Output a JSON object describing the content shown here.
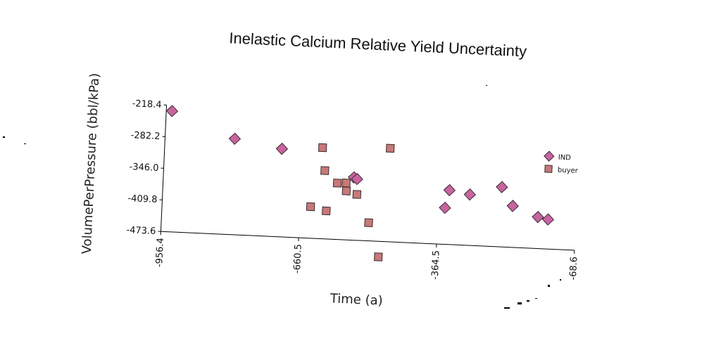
{
  "chart_data": {
    "type": "scatter",
    "title": "Inelastic Calcium Relative Yield Uncertainty",
    "xlabel": "Time (a)",
    "ylabel": "VolumePerPressure (bbl/kPa)",
    "xlim": [
      -956.4,
      -68.6
    ],
    "ylim": [
      -473.6,
      -218.4
    ],
    "x_ticks": [
      "-956.4",
      "-660.5",
      "-364.5",
      "-68.6"
    ],
    "y_ticks": [
      "-218.4",
      "-282.2",
      "-346.0",
      "-409.8",
      "-473.6"
    ],
    "legend_position": "right",
    "series": [
      {
        "name": "IND",
        "marker": "diamond",
        "color": "#c8649e",
        "points": [
          {
            "x": -944,
            "y": -230
          },
          {
            "x": -807,
            "y": -280
          },
          {
            "x": -705,
            "y": -296
          },
          {
            "x": -548,
            "y": -347
          },
          {
            "x": -541,
            "y": -350
          },
          {
            "x": -350,
            "y": -400
          },
          {
            "x": -342,
            "y": -364
          },
          {
            "x": -298,
            "y": -371
          },
          {
            "x": -230,
            "y": -353
          },
          {
            "x": -205,
            "y": -390
          },
          {
            "x": -150,
            "y": -410
          },
          {
            "x": -128,
            "y": -414
          }
        ]
      },
      {
        "name": "buyer",
        "marker": "square",
        "color": "#c87878",
        "points": [
          {
            "x": -618,
            "y": -290
          },
          {
            "x": -611,
            "y": -336
          },
          {
            "x": -583,
            "y": -360
          },
          {
            "x": -564,
            "y": -359
          },
          {
            "x": -563,
            "y": -375
          },
          {
            "x": -540,
            "y": -381
          },
          {
            "x": -638,
            "y": -410
          },
          {
            "x": -604,
            "y": -417
          },
          {
            "x": -512,
            "y": -437
          },
          {
            "x": -473,
            "y": -285
          },
          {
            "x": -488,
            "y": -505
          }
        ]
      }
    ]
  }
}
